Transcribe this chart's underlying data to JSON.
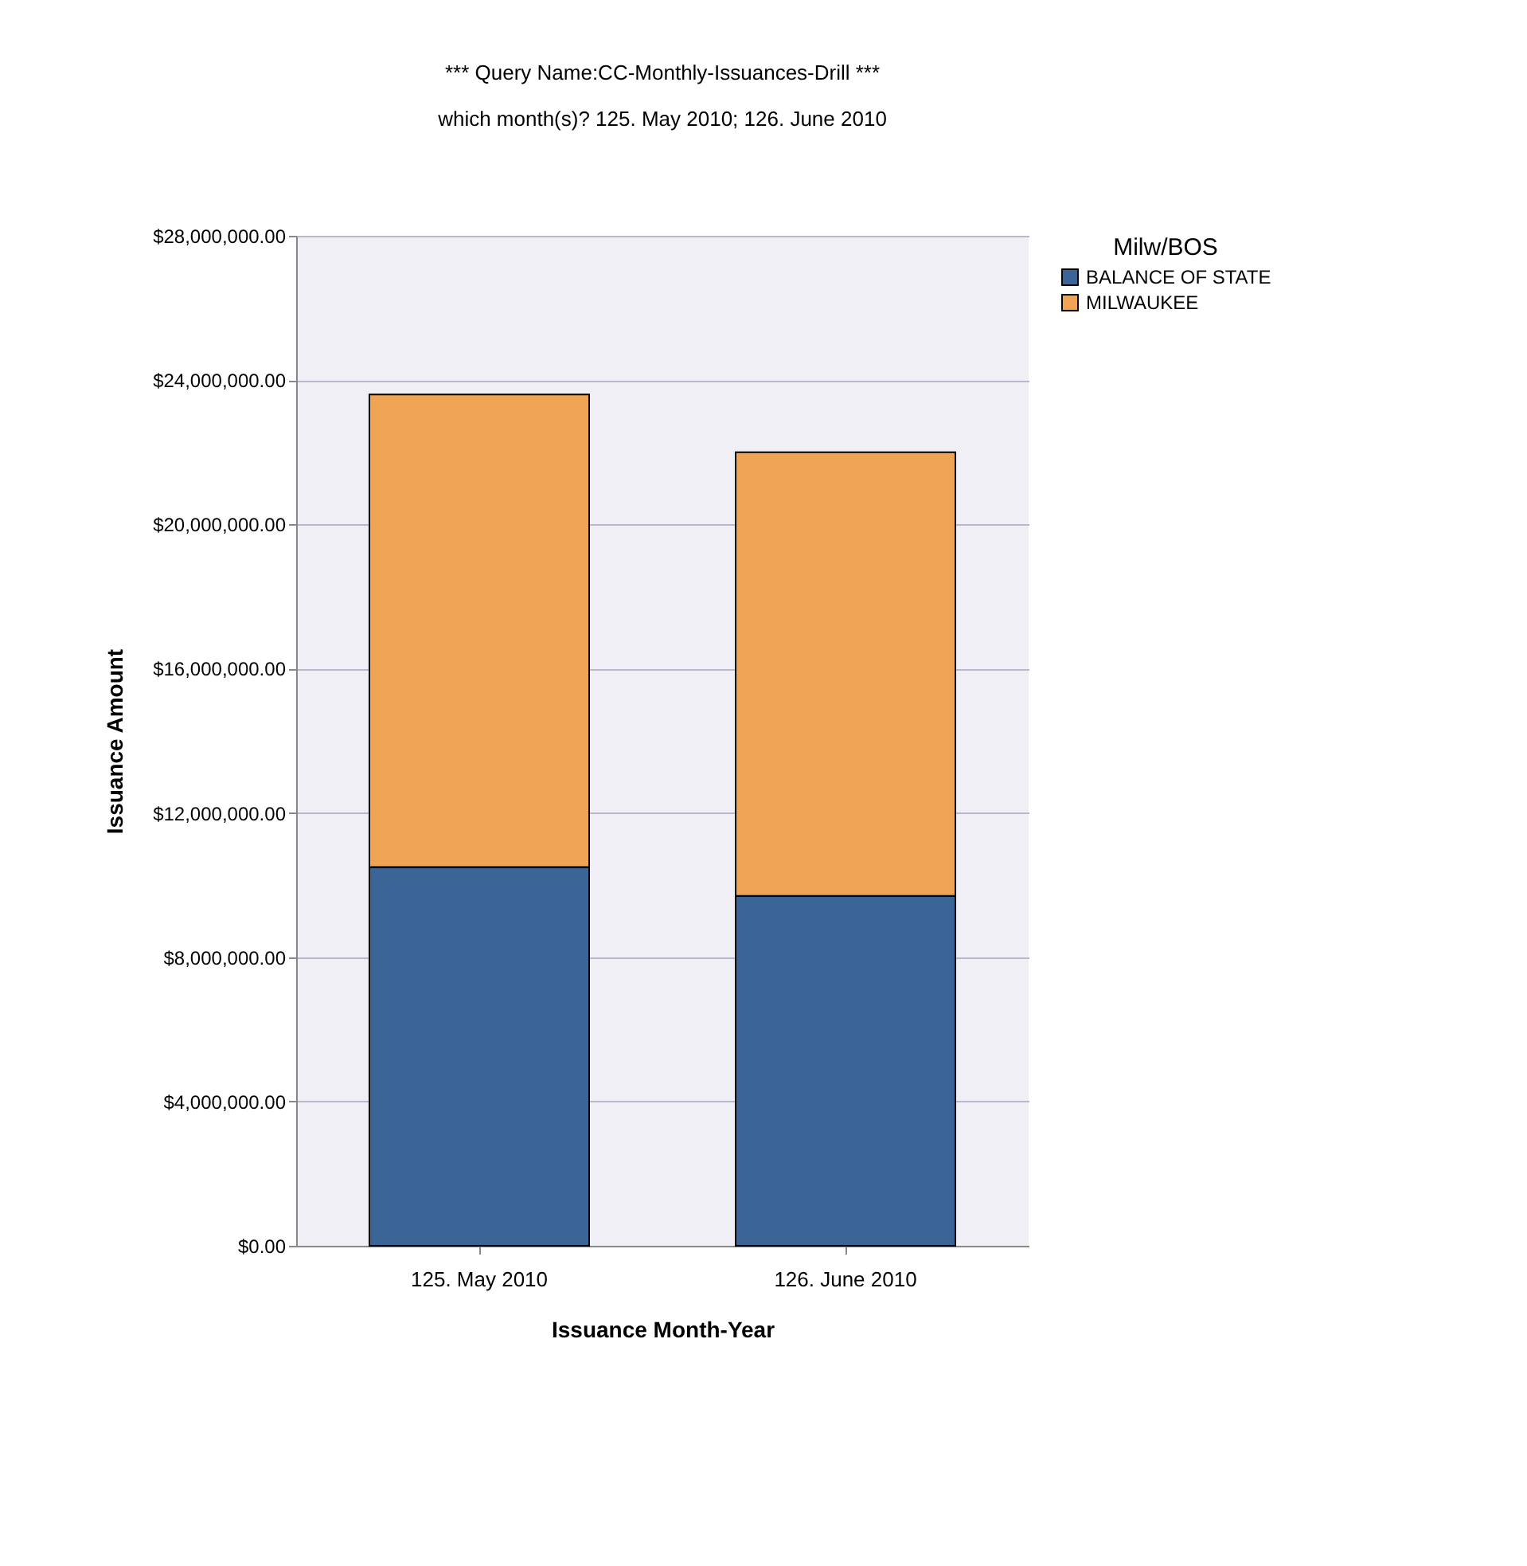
{
  "chart_data": {
    "type": "bar",
    "title": "*** Query Name:CC-Monthly-Issuances-Drill ***",
    "subtitle": "which month(s)? 125. May 2010; 126. June 2010",
    "xlabel": "Issuance Month-Year",
    "ylabel": "Issuance Amount",
    "legend_title": "Milw/BOS",
    "categories": [
      "125. May 2010",
      "126. June 2010"
    ],
    "stacked": true,
    "series": [
      {
        "name": "BALANCE OF STATE",
        "color": "#3a6596",
        "values": [
          10500000,
          9700000
        ]
      },
      {
        "name": "MILWAUKEE",
        "color": "#eea453",
        "values": [
          13100000,
          12300000
        ]
      }
    ],
    "ylim": [
      0,
      28000000
    ],
    "yticks": [
      {
        "value": 0,
        "label": "$0.00"
      },
      {
        "value": 4000000,
        "label": "$4,000,000.00"
      },
      {
        "value": 8000000,
        "label": "$8,000,000.00"
      },
      {
        "value": 12000000,
        "label": "$12,000,000.00"
      },
      {
        "value": 16000000,
        "label": "$16,000,000.00"
      },
      {
        "value": 20000000,
        "label": "$20,000,000.00"
      },
      {
        "value": 24000000,
        "label": "$24,000,000.00"
      },
      {
        "value": 28000000,
        "label": "$28,000,000.00"
      }
    ],
    "grid": "y",
    "legend": "right"
  }
}
